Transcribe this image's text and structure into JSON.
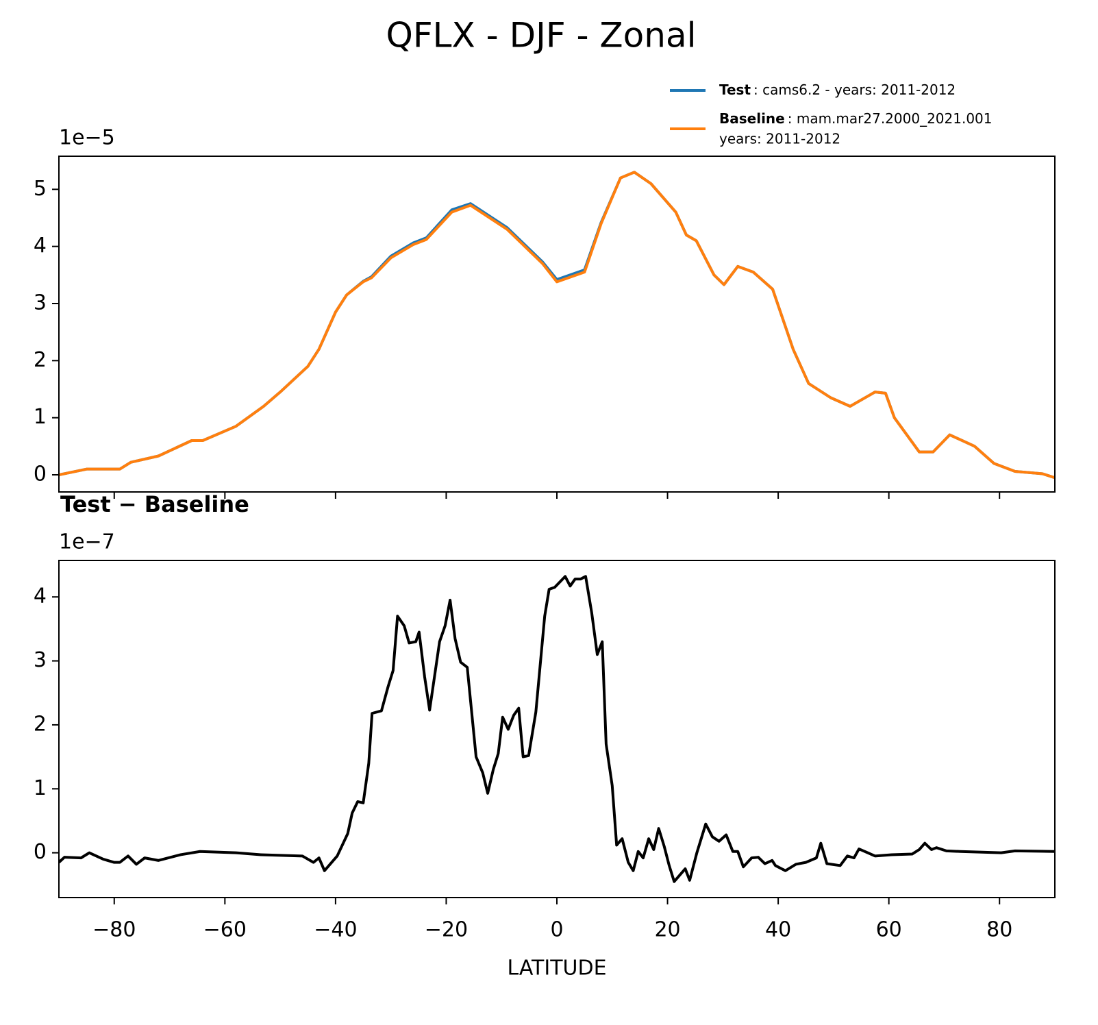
{
  "title": "QFLX - DJF - Zonal",
  "chart_data": [
    {
      "type": "line",
      "y_offset_label": "1e−5",
      "xlim": [
        -90,
        90
      ],
      "ylim": [
        -0.3,
        5.58
      ],
      "xticks": [
        {
          "value": -80,
          "label": "−80"
        },
        {
          "value": -60,
          "label": "−60"
        },
        {
          "value": -40,
          "label": "−40"
        },
        {
          "value": -20,
          "label": "−20"
        },
        0,
        20,
        40,
        60,
        80
      ],
      "yticks": [
        0,
        1,
        2,
        3,
        4,
        5
      ],
      "x": [
        -90,
        -85,
        -79,
        -77,
        -72,
        -66,
        -64,
        -58,
        -53,
        -50,
        -45,
        -43,
        -40,
        -38,
        -35,
        -33.5,
        -30,
        -26,
        -23.6,
        -19,
        -15.6,
        -9,
        -2.6,
        0,
        5,
        8,
        11.5,
        14,
        17,
        21.5,
        23.4,
        25.2,
        28.4,
        30.2,
        32.7,
        35.5,
        39,
        42.7,
        45.5,
        49.5,
        53,
        57.5,
        59.4,
        61,
        65.5,
        68,
        71,
        75.5,
        79,
        82.8,
        87.7,
        90
      ],
      "series": [
        {
          "name": "Test",
          "description": [
            ": cams6.2 - years: 2011-2012"
          ],
          "color": "#1f77b4",
          "values": [
            0.0,
            0.1,
            0.1,
            0.22,
            0.33,
            0.6,
            0.6,
            0.85,
            1.2,
            1.45,
            1.9,
            2.2,
            2.85,
            3.15,
            3.39,
            3.47,
            3.83,
            4.06,
            4.15,
            4.64,
            4.75,
            4.33,
            3.73,
            3.42,
            3.59,
            4.42,
            5.2,
            5.3,
            5.1,
            4.6,
            4.2,
            4.1,
            3.5,
            3.33,
            3.65,
            3.55,
            3.25,
            2.2,
            1.6,
            1.35,
            1.2,
            1.45,
            1.43,
            1.0,
            0.4,
            0.4,
            0.7,
            0.5,
            0.2,
            0.06,
            0.02,
            -0.05
          ]
        },
        {
          "name": "Baseline",
          "description": [
            ": mam.mar27.2000_2021.001",
            "years: 2011-2012"
          ],
          "color": "#ff7f0e",
          "values": [
            0.0,
            0.1,
            0.1,
            0.22,
            0.33,
            0.6,
            0.6,
            0.85,
            1.2,
            1.45,
            1.9,
            2.2,
            2.85,
            3.15,
            3.38,
            3.45,
            3.8,
            4.03,
            4.12,
            4.6,
            4.72,
            4.3,
            3.7,
            3.38,
            3.55,
            4.4,
            5.2,
            5.3,
            5.1,
            4.6,
            4.2,
            4.1,
            3.5,
            3.33,
            3.65,
            3.55,
            3.25,
            2.2,
            1.6,
            1.35,
            1.2,
            1.45,
            1.43,
            1.0,
            0.4,
            0.4,
            0.7,
            0.5,
            0.2,
            0.06,
            0.02,
            -0.05
          ]
        }
      ]
    },
    {
      "type": "line",
      "title": "Test − Baseline",
      "y_offset_label": "1e−7",
      "xlabel": "LATITUDE",
      "xlim": [
        -90,
        90
      ],
      "ylim": [
        -0.7,
        4.57
      ],
      "xticks": [
        {
          "value": -80,
          "label": "−80"
        },
        {
          "value": -60,
          "label": "−60"
        },
        {
          "value": -40,
          "label": "−40"
        },
        {
          "value": -20,
          "label": "−20"
        },
        0,
        20,
        40,
        60,
        80
      ],
      "yticks": [
        0,
        1,
        2,
        3,
        4
      ],
      "x": [
        -90,
        -89,
        -86,
        -84.5,
        -82,
        -80,
        -79,
        -77.5,
        -76,
        -74.5,
        -72,
        -68,
        -64.5,
        -58,
        -53.5,
        -46,
        -44,
        -43,
        -42,
        -39.7,
        -37.8,
        -37,
        -36,
        -35,
        -34,
        -33.4,
        -31.7,
        -30.5,
        -29.6,
        -28.8,
        -27.6,
        -26.7,
        -25.5,
        -24.9,
        -23.9,
        -23,
        -21.2,
        -20.2,
        -19.3,
        -18.4,
        -17.4,
        -16.2,
        -14.6,
        -13.4,
        -12.5,
        -11.5,
        -10.6,
        -9.8,
        -8.8,
        -7.8,
        -6.9,
        -6.1,
        -5.1,
        -3.8,
        -2.2,
        -1.4,
        -0.4,
        1.5,
        2.4,
        3.3,
        4.3,
        5.2,
        6.3,
        7.3,
        8.2,
        8.9,
        10,
        10.8,
        11.8,
        12.9,
        13.8,
        14.7,
        15.6,
        16.6,
        17.5,
        18.4,
        19.4,
        20.3,
        21.2,
        22.2,
        23.2,
        24,
        25.3,
        26.9,
        28.1,
        29.3,
        30.6,
        31.8,
        32.7,
        33.7,
        35.2,
        36.4,
        37.6,
        38.9,
        39.5,
        41.3,
        43.2,
        45,
        46.9,
        47.7,
        48.8,
        51.2,
        52.5,
        53.7,
        54.6,
        57.5,
        60.5,
        64.2,
        65.5,
        66.5,
        67.7,
        68.6,
        70.4,
        72.9,
        80.3,
        82.8,
        90
      ],
      "series": [
        {
          "name": "Test − Baseline",
          "color": "#000000",
          "values": [
            -0.15,
            -0.07,
            -0.08,
            0.0,
            -0.1,
            -0.15,
            -0.15,
            -0.05,
            -0.18,
            -0.08,
            -0.12,
            -0.03,
            0.02,
            0.0,
            -0.03,
            -0.05,
            -0.15,
            -0.08,
            -0.28,
            -0.05,
            0.3,
            0.62,
            0.8,
            0.78,
            1.4,
            2.18,
            2.22,
            2.6,
            2.85,
            3.7,
            3.55,
            3.28,
            3.3,
            3.45,
            2.75,
            2.23,
            3.3,
            3.55,
            3.95,
            3.35,
            2.98,
            2.9,
            1.5,
            1.25,
            0.93,
            1.3,
            1.55,
            2.12,
            1.93,
            2.15,
            2.26,
            1.5,
            1.52,
            2.2,
            3.7,
            4.12,
            4.15,
            4.32,
            4.17,
            4.28,
            4.28,
            4.32,
            3.75,
            3.1,
            3.3,
            1.7,
            1.05,
            0.12,
            0.22,
            -0.15,
            -0.28,
            0.02,
            -0.08,
            0.22,
            0.05,
            0.38,
            0.1,
            -0.2,
            -0.45,
            -0.35,
            -0.25,
            -0.43,
            0.0,
            0.45,
            0.25,
            0.18,
            0.28,
            0.02,
            0.02,
            -0.22,
            -0.08,
            -0.07,
            -0.17,
            -0.12,
            -0.2,
            -0.28,
            -0.18,
            -0.15,
            -0.08,
            0.15,
            -0.17,
            -0.2,
            -0.05,
            -0.08,
            0.06,
            -0.05,
            -0.03,
            -0.02,
            0.05,
            0.15,
            0.05,
            0.08,
            0.03,
            0.02,
            0.0,
            0.03,
            0.02
          ]
        }
      ]
    }
  ]
}
